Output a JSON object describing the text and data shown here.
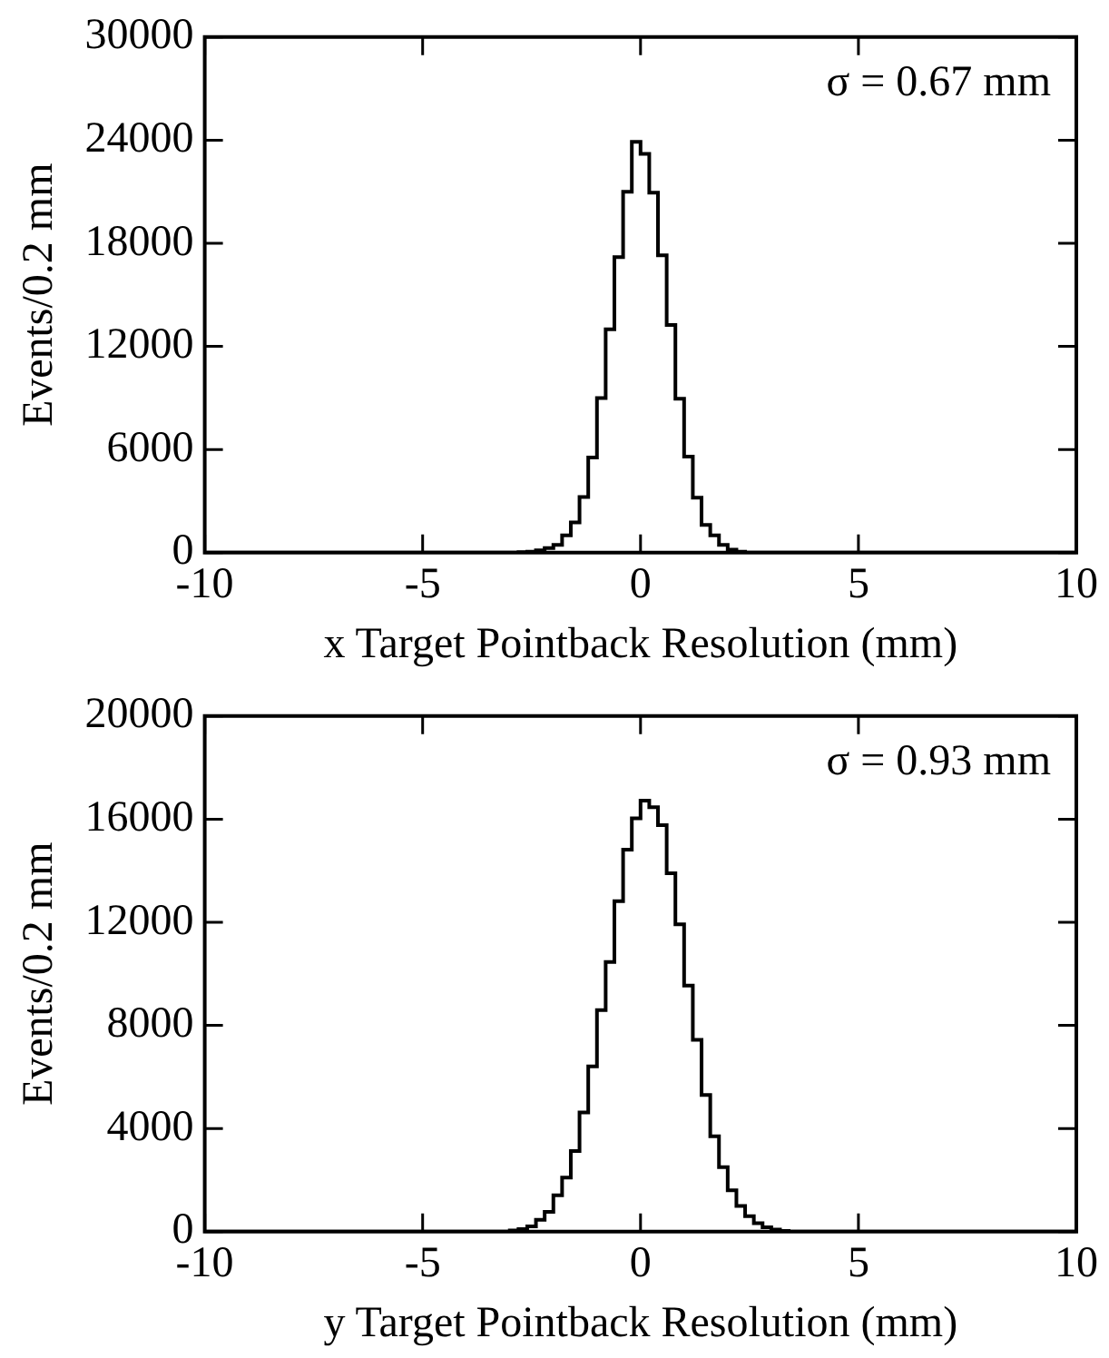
{
  "chart_data": [
    {
      "type": "histogram",
      "xlabel": "x Target Pointback Resolution (mm)",
      "ylabel": "Events/0.2 mm",
      "annotations": [
        "σ = 0.67 mm"
      ],
      "color": "#000000",
      "grid": false,
      "legend": false,
      "bins": [
        -10,
        -9.8,
        -9.6,
        -9.4,
        -9.2,
        -9,
        -8.8,
        -8.6,
        -8.4,
        -8.2,
        -8,
        -7.8,
        -7.6,
        -7.4,
        -7.2,
        -7,
        -6.8,
        -6.6,
        -6.4,
        -6.2,
        -6,
        -5.8,
        -5.6,
        -5.4,
        -5.2,
        -5,
        -4.8,
        -4.6,
        -4.4,
        -4.2,
        -4,
        -3.8,
        -3.6,
        -3.4,
        -3.2,
        -3,
        -2.8,
        -2.6,
        -2.4,
        -2.2,
        -2,
        -1.8,
        -1.6,
        -1.4,
        -1.2,
        -1,
        -0.8,
        -0.6,
        -0.4,
        -0.2,
        0,
        0.2,
        0.4,
        0.6,
        0.8,
        1,
        1.2,
        1.4,
        1.6,
        1.8,
        2,
        2.2,
        2.4,
        2.6,
        2.8,
        3,
        3.2,
        3.4,
        3.6,
        3.8,
        4,
        4.2,
        4.4,
        4.6,
        4.8,
        5,
        5.2,
        5.4,
        5.6,
        5.8,
        6,
        6.2,
        6.4,
        6.6,
        6.8,
        7,
        7.2,
        7.4,
        7.6,
        7.8,
        8,
        8.2,
        8.4,
        8.6,
        8.8,
        9,
        9.2,
        9.4,
        9.6,
        9.8,
        10
      ],
      "values": [
        0,
        0,
        0,
        0,
        0,
        0,
        0,
        0,
        0,
        0,
        0,
        0,
        0,
        0,
        0,
        0,
        0,
        0,
        0,
        0,
        0,
        0,
        0,
        0,
        0,
        0,
        0,
        0,
        0,
        0,
        0,
        0,
        0,
        0,
        0,
        0,
        30,
        60,
        130,
        270,
        450,
        1000,
        1760,
        3240,
        5540,
        9000,
        13000,
        17200,
        21000,
        23900,
        23200,
        20950,
        17300,
        13250,
        8960,
        5590,
        3200,
        1620,
        1000,
        450,
        180,
        60,
        0,
        0,
        0,
        0,
        0,
        0,
        0,
        0,
        0,
        0,
        0,
        0,
        0,
        0,
        0,
        0,
        0,
        0,
        0,
        0,
        0,
        0,
        0,
        0,
        0,
        0,
        0,
        0,
        0,
        0,
        0,
        0,
        0,
        0,
        0,
        0,
        0,
        0
      ],
      "xlim": [
        -10,
        10
      ],
      "xticks": [
        -10,
        -5,
        0,
        5,
        10
      ],
      "ylim": [
        0,
        30000
      ],
      "yticks": [
        0,
        6000,
        12000,
        18000,
        24000,
        30000
      ]
    },
    {
      "type": "histogram",
      "xlabel": "y Target Pointback Resolution (mm)",
      "ylabel": "Events/0.2 mm",
      "annotations": [
        "σ = 0.93 mm"
      ],
      "color": "#000000",
      "grid": false,
      "legend": false,
      "bins": [
        -10,
        -9.8,
        -9.6,
        -9.4,
        -9.2,
        -9,
        -8.8,
        -8.6,
        -8.4,
        -8.2,
        -8,
        -7.8,
        -7.6,
        -7.4,
        -7.2,
        -7,
        -6.8,
        -6.6,
        -6.4,
        -6.2,
        -6,
        -5.8,
        -5.6,
        -5.4,
        -5.2,
        -5,
        -4.8,
        -4.6,
        -4.4,
        -4.2,
        -4,
        -3.8,
        -3.6,
        -3.4,
        -3.2,
        -3,
        -2.8,
        -2.6,
        -2.4,
        -2.2,
        -2,
        -1.8,
        -1.6,
        -1.4,
        -1.2,
        -1,
        -0.8,
        -0.6,
        -0.4,
        -0.2,
        0,
        0.2,
        0.4,
        0.6,
        0.8,
        1,
        1.2,
        1.4,
        1.6,
        1.8,
        2,
        2.2,
        2.4,
        2.6,
        2.8,
        3,
        3.2,
        3.4,
        3.6,
        3.8,
        4,
        4.2,
        4.4,
        4.6,
        4.8,
        5,
        5.2,
        5.4,
        5.6,
        5.8,
        6,
        6.2,
        6.4,
        6.6,
        6.8,
        7,
        7.2,
        7.4,
        7.6,
        7.8,
        8,
        8.2,
        8.4,
        8.6,
        8.8,
        9,
        9.2,
        9.4,
        9.6,
        9.8,
        10
      ],
      "values": [
        0,
        0,
        0,
        0,
        0,
        0,
        0,
        0,
        0,
        0,
        0,
        0,
        0,
        0,
        0,
        0,
        0,
        0,
        0,
        0,
        0,
        0,
        0,
        0,
        0,
        0,
        0,
        0,
        0,
        0,
        0,
        0,
        0,
        0,
        0,
        50,
        100,
        200,
        460,
        770,
        1410,
        2100,
        3130,
        4620,
        6410,
        8590,
        10460,
        12820,
        14820,
        16030,
        16720,
        16460,
        15770,
        13900,
        11920,
        9540,
        7440,
        5300,
        3700,
        2500,
        1600,
        1000,
        600,
        330,
        170,
        80,
        30,
        0,
        0,
        0,
        0,
        0,
        0,
        0,
        0,
        0,
        0,
        0,
        0,
        0,
        0,
        0,
        0,
        0,
        0,
        0,
        0,
        0,
        0,
        0,
        0,
        0,
        0,
        0,
        0,
        0,
        0,
        0,
        0,
        0
      ],
      "xlim": [
        -10,
        10
      ],
      "xticks": [
        -10,
        -5,
        0,
        5,
        10
      ],
      "ylim": [
        0,
        20000
      ],
      "yticks": [
        0,
        4000,
        8000,
        12000,
        16000,
        20000
      ]
    }
  ]
}
